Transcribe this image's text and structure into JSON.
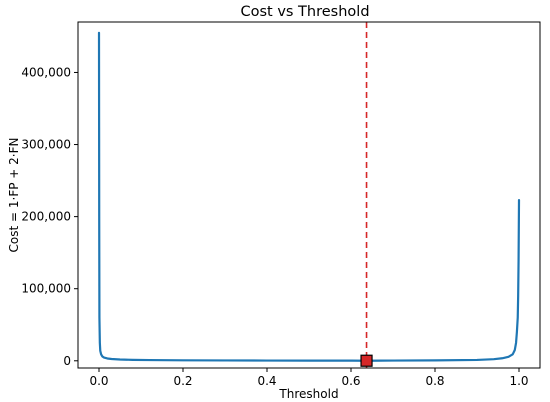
{
  "chart_data": {
    "type": "line",
    "title": "Cost vs Threshold",
    "xlabel": "Threshold",
    "ylabel": "Cost = 1·FP + 2·FN",
    "xlim": [
      -0.05,
      1.05
    ],
    "ylim": [
      -10000,
      470000
    ],
    "xticks": [
      0.0,
      0.2,
      0.4,
      0.6,
      0.8,
      1.0
    ],
    "xtick_labels": [
      "0.0",
      "0.2",
      "0.4",
      "0.6",
      "0.8",
      "1.0"
    ],
    "yticks": [
      0,
      100000,
      200000,
      300000,
      400000
    ],
    "ytick_labels": [
      "0",
      "100,000",
      "200,000",
      "300,000",
      "400,000"
    ],
    "grid": false,
    "series": [
      {
        "color": "#1f77b4",
        "x": [
          0.0,
          0.0005,
          0.001,
          0.002,
          0.003,
          0.005,
          0.008,
          0.012,
          0.02,
          0.03,
          0.05,
          0.08,
          0.12,
          0.2,
          0.3,
          0.4,
          0.5,
          0.6,
          0.637,
          0.7,
          0.8,
          0.9,
          0.94,
          0.96,
          0.975,
          0.985,
          0.99,
          0.993,
          0.995,
          0.997,
          0.998,
          0.999,
          1.0
        ],
        "y": [
          455000,
          200000,
          60000,
          25000,
          14000,
          9000,
          6000,
          4500,
          3200,
          2500,
          1800,
          1300,
          1000,
          700,
          500,
          350,
          250,
          180,
          100,
          300,
          600,
          1200,
          2200,
          3500,
          5500,
          9000,
          15000,
          25000,
          40000,
          60000,
          90000,
          140000,
          223000
        ]
      }
    ],
    "vline": {
      "x": 0.637,
      "color": "#d62728",
      "style": "dashed"
    },
    "marker": {
      "x": 0.637,
      "y": 100,
      "shape": "square",
      "color": "#d62728"
    }
  }
}
